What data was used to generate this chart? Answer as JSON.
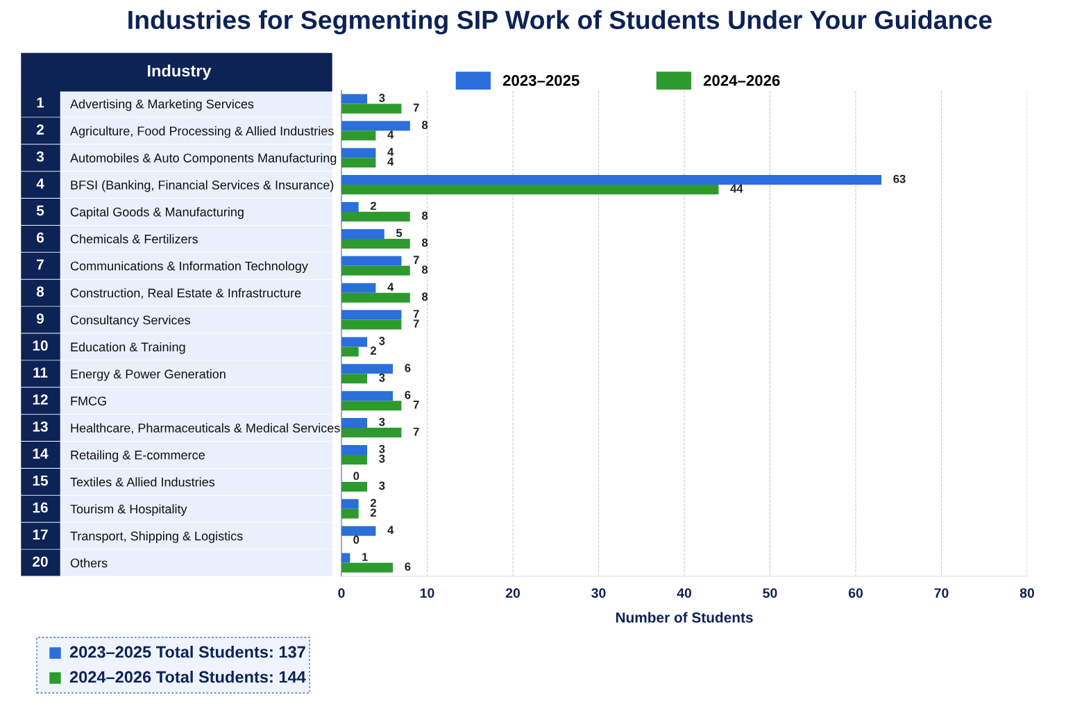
{
  "chart_data": {
    "type": "bar",
    "orientation": "horizontal",
    "title": "Industries for Segmenting SIP Work of Students Under Your Guidance",
    "xlabel": "Number of Students",
    "categories": [
      "Advertising & Marketing Services",
      "Agriculture, Food Processing & Allied Industries",
      "Automobiles & Auto Components Manufacturing",
      "BFSI (Banking, Financial Services & Insurance)",
      "Capital Goods & Manufacturing",
      "Chemicals & Fertilizers",
      "Communications & Information Technology",
      "Construction, Real Estate & Infrastructure",
      "Consultancy Services",
      "Education & Training",
      "Energy & Power Generation",
      "FMCG",
      "Healthcare, Pharmaceuticals & Medical Services",
      "Retailing & E-commerce",
      "Textiles & Allied Industries",
      "Tourism & Hospitality",
      "Transport, Shipping & Logistics",
      "Others"
    ],
    "series": [
      {
        "name": "2023–2025",
        "color": "#2a6fdb",
        "values": [
          3,
          8,
          4,
          63,
          2,
          5,
          7,
          4,
          7,
          3,
          6,
          6,
          3,
          3,
          0,
          2,
          4,
          1
        ]
      },
      {
        "name": "2024–2026",
        "color": "#2e9a2e",
        "values": [
          7,
          4,
          4,
          44,
          8,
          8,
          8,
          8,
          7,
          2,
          3,
          7,
          7,
          3,
          3,
          2,
          0,
          6
        ]
      }
    ],
    "xlim": [
      0,
      80
    ],
    "xticks": [
      0,
      10,
      20,
      30,
      40,
      50,
      60,
      70,
      80
    ],
    "grid": "x",
    "legend": "top",
    "data_labels": true,
    "annotations": [
      "Industry",
      "2023–2025 Total Students: 137",
      "2024–2026 Total Students: 144",
      "1",
      "2",
      "3",
      "4",
      "5",
      "6",
      "7",
      "8",
      "9",
      "10",
      "11",
      "12",
      "13",
      "14",
      "15",
      "16",
      "17",
      "20"
    ]
  }
}
